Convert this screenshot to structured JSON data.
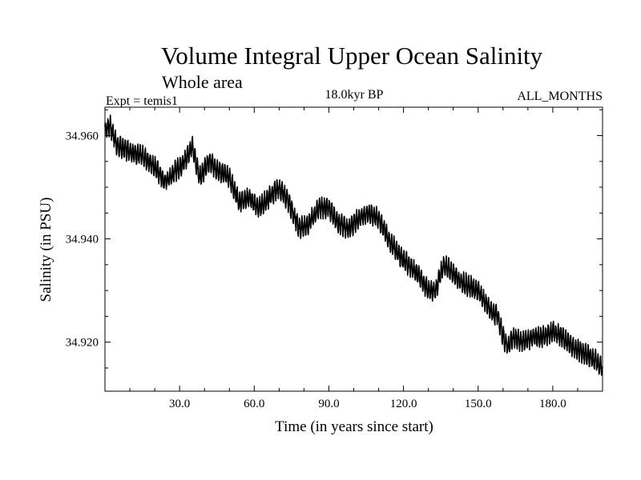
{
  "chart_data": {
    "type": "line",
    "title": "Volume Integral Upper Ocean Salinity",
    "subtitle": "Whole area",
    "experiment_label": "Expt = temis1",
    "period_label": "18.0kyr BP",
    "months_label": "ALL_MONTHS",
    "xlabel": "Time (in years since start)",
    "ylabel": "Salinity (in PSU)",
    "xlim": [
      0,
      200
    ],
    "ylim": [
      34.9105,
      34.9655
    ],
    "x_ticks": [
      30,
      60,
      90,
      120,
      150,
      180
    ],
    "x_tick_labels": [
      "30.0",
      "60.0",
      "90.0",
      "120.0",
      "150.0",
      "180.0"
    ],
    "y_ticks": [
      34.92,
      34.94,
      34.96
    ],
    "y_tick_labels": [
      "34.920",
      "34.940",
      "34.960"
    ],
    "grid": false,
    "legend": "none",
    "series": [
      {
        "name": "Salinity",
        "color": "#000000",
        "samples_per_year": 12,
        "seasonal_amplitude": 0.0017,
        "x": [
          0,
          2,
          5,
          10,
          15,
          20,
          24,
          28,
          32,
          35,
          38,
          42,
          46,
          50,
          54,
          58,
          62,
          66,
          70,
          74,
          78,
          82,
          86,
          90,
          94,
          98,
          102,
          106,
          110,
          114,
          118,
          122,
          126,
          130,
          133,
          136,
          139,
          142,
          146,
          150,
          155,
          158,
          160,
          162,
          164,
          168,
          172,
          176,
          180,
          184,
          188,
          192,
          196,
          200
        ],
        "values": [
          34.961,
          34.962,
          34.958,
          34.957,
          34.956,
          34.954,
          34.951,
          34.953,
          34.955,
          34.958,
          34.952,
          34.955,
          34.953,
          34.952,
          34.947,
          34.948,
          34.946,
          34.948,
          34.95,
          34.947,
          34.942,
          34.943,
          34.946,
          34.946,
          34.943,
          34.942,
          34.944,
          34.945,
          34.944,
          34.94,
          34.937,
          34.935,
          34.933,
          34.93,
          34.93,
          34.935,
          34.934,
          34.932,
          34.931,
          34.93,
          34.926,
          34.925,
          34.921,
          34.919,
          34.921,
          34.92,
          34.921,
          34.921,
          34.922,
          34.921,
          34.919,
          34.918,
          34.917,
          34.915
        ]
      }
    ]
  }
}
